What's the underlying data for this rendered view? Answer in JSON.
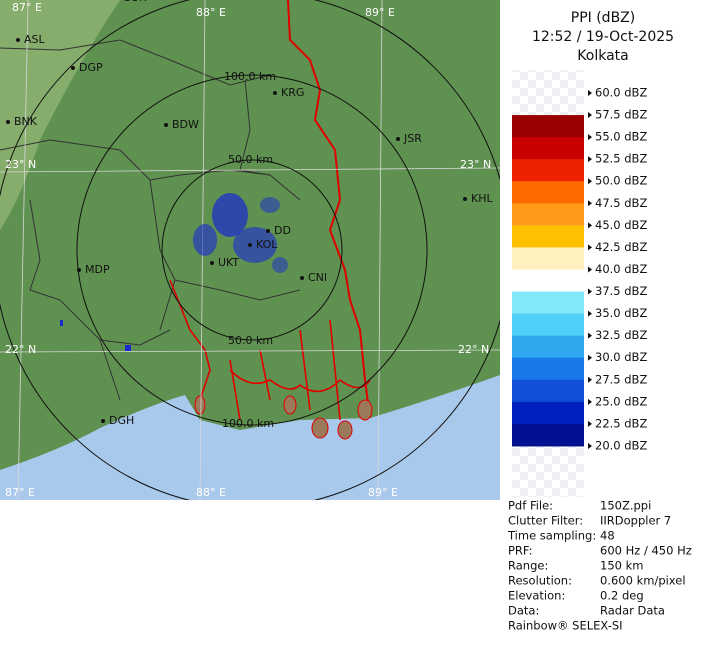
{
  "map": {
    "grid_labels": [
      "87° E",
      "88° E",
      "89° E",
      "23° N",
      "23° N",
      "22° N",
      "22° N",
      "87° E",
      "88° E",
      "89° E"
    ],
    "range_labels": [
      "100.0 km",
      "50.0 km",
      "50.0 km",
      "100.0 km"
    ],
    "cities": [
      "SUR",
      "ASL",
      "DGP",
      "BNK",
      "BDW",
      "KRG",
      "JSR",
      "KHL",
      "MDP",
      "DD",
      "KOL",
      "UKT",
      "CNI",
      "DGH"
    ]
  },
  "header": {
    "title": "PPI (dBZ)",
    "time": "12:52 / 19-Oct-2025",
    "station": "Kolkata"
  },
  "legend": {
    "labels": [
      "60.0 dBZ",
      "57.5 dBZ",
      "55.0 dBZ",
      "52.5 dBZ",
      "50.0 dBZ",
      "47.5 dBZ",
      "45.0 dBZ",
      "42.5 dBZ",
      "40.0 dBZ",
      "37.5 dBZ",
      "35.0 dBZ",
      "32.5 dBZ",
      "30.0 dBZ",
      "27.5 dBZ",
      "25.0 dBZ",
      "22.5 dBZ",
      "20.0 dBZ"
    ],
    "colors": [
      "#9b0000",
      "#c80000",
      "#ee2200",
      "#ff6a00",
      "#ff9a1a",
      "#ffc000",
      "#fff0c0",
      "#ffffff",
      "#80e8f8",
      "#50d0f8",
      "#30a8f0",
      "#1878e8",
      "#1050d8",
      "#0020c0",
      "#001090"
    ]
  },
  "info": {
    "rows": [
      [
        "Pdf File:",
        "150Z.ppi"
      ],
      [
        "Clutter Filter:",
        "IIRDoppler 7"
      ],
      [
        "Time sampling:",
        "48"
      ],
      [
        "PRF:",
        "600 Hz / 450 Hz"
      ],
      [
        "Range:",
        "150 km"
      ],
      [
        "Resolution:",
        "0.600 km/pixel"
      ],
      [
        "Elevation:",
        "0.2 deg"
      ],
      [
        "Data:",
        "Radar Data"
      ]
    ],
    "footer": "Rainbow® SELEX-SI"
  }
}
